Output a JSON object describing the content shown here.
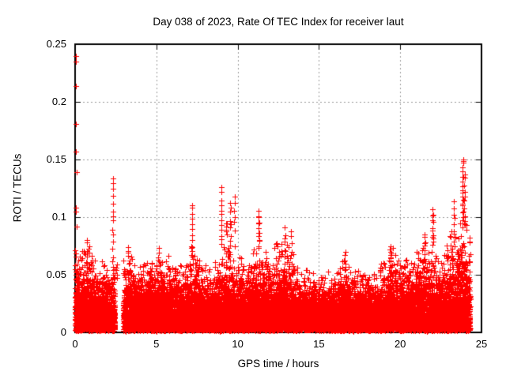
{
  "chart_data": {
    "type": "scatter",
    "title": "Day 038 of 2023, Rate Of TEC Index for receiver laut",
    "xlabel": "GPS time / hours",
    "ylabel": "ROTI / TECUs",
    "xlim": [
      0,
      25
    ],
    "ylim": [
      0,
      0.25
    ],
    "xtick_labels": [
      "0",
      "5",
      "10",
      "15",
      "20",
      "25"
    ],
    "ytick_labels": [
      "0",
      "0.05",
      "0.1",
      "0.15",
      "0.2",
      "0.25"
    ],
    "grid": "dashed",
    "grid_color": "#9a9a9a",
    "marker_shape": "plus",
    "marker_color": "#ff0000",
    "border_color": "#000000",
    "background_color": "#ffffff",
    "series_name": "ROTI",
    "sampling": {
      "start_hour": 0,
      "end_hour": 24.3,
      "gap_hours": [
        2.45,
        2.95
      ],
      "epoch_step_hours": 0.008333,
      "points_per_epoch": 6,
      "seed": 38
    },
    "envelope_hour_maxroti": [
      [
        0.0,
        0.078
      ],
      [
        0.2,
        0.062
      ],
      [
        0.4,
        0.068
      ],
      [
        0.7,
        0.08
      ],
      [
        1.0,
        0.072
      ],
      [
        1.3,
        0.065
      ],
      [
        1.6,
        0.062
      ],
      [
        1.9,
        0.056
      ],
      [
        2.2,
        0.062
      ],
      [
        2.45,
        0.055
      ],
      [
        2.95,
        0.058
      ],
      [
        3.3,
        0.072
      ],
      [
        3.6,
        0.062
      ],
      [
        4.0,
        0.056
      ],
      [
        4.4,
        0.065
      ],
      [
        4.8,
        0.07
      ],
      [
        5.2,
        0.078
      ],
      [
        5.6,
        0.07
      ],
      [
        6.0,
        0.06
      ],
      [
        6.4,
        0.058
      ],
      [
        6.8,
        0.062
      ],
      [
        7.2,
        0.072
      ],
      [
        7.6,
        0.066
      ],
      [
        8.0,
        0.056
      ],
      [
        8.4,
        0.058
      ],
      [
        8.8,
        0.066
      ],
      [
        9.2,
        0.07
      ],
      [
        9.6,
        0.076
      ],
      [
        10.0,
        0.068
      ],
      [
        10.4,
        0.06
      ],
      [
        10.8,
        0.066
      ],
      [
        11.2,
        0.075
      ],
      [
        11.6,
        0.068
      ],
      [
        12.0,
        0.062
      ],
      [
        12.4,
        0.078
      ],
      [
        12.8,
        0.072
      ],
      [
        13.2,
        0.076
      ],
      [
        13.6,
        0.06
      ],
      [
        14.0,
        0.056
      ],
      [
        14.5,
        0.05
      ],
      [
        15.0,
        0.048
      ],
      [
        15.5,
        0.052
      ],
      [
        16.0,
        0.05
      ],
      [
        16.5,
        0.06
      ],
      [
        17.0,
        0.052
      ],
      [
        17.5,
        0.05
      ],
      [
        18.0,
        0.052
      ],
      [
        18.5,
        0.05
      ],
      [
        19.0,
        0.06
      ],
      [
        19.4,
        0.072
      ],
      [
        19.8,
        0.062
      ],
      [
        20.2,
        0.06
      ],
      [
        20.6,
        0.066
      ],
      [
        21.0,
        0.07
      ],
      [
        21.4,
        0.078
      ],
      [
        21.8,
        0.072
      ],
      [
        22.2,
        0.064
      ],
      [
        22.6,
        0.07
      ],
      [
        23.0,
        0.08
      ],
      [
        23.4,
        0.09
      ],
      [
        23.8,
        0.096
      ],
      [
        24.1,
        0.09
      ],
      [
        24.3,
        0.08
      ]
    ],
    "spike_streaks_t_y0_y1_n": [
      [
        2.33,
        0.05,
        0.135,
        16
      ],
      [
        2.55,
        0.047,
        0.06,
        5
      ],
      [
        7.2,
        0.07,
        0.112,
        10
      ],
      [
        9.0,
        0.075,
        0.125,
        12
      ],
      [
        9.3,
        0.084,
        0.096,
        6
      ],
      [
        9.55,
        0.08,
        0.112,
        8
      ],
      [
        9.8,
        0.09,
        0.118,
        6
      ],
      [
        11.3,
        0.074,
        0.104,
        14
      ],
      [
        12.9,
        0.06,
        0.09,
        8
      ],
      [
        13.3,
        0.06,
        0.088,
        6
      ],
      [
        16.6,
        0.054,
        0.068,
        6
      ],
      [
        19.4,
        0.06,
        0.076,
        6
      ],
      [
        21.5,
        0.06,
        0.086,
        8
      ],
      [
        22.0,
        0.074,
        0.106,
        12
      ],
      [
        23.3,
        0.08,
        0.112,
        8
      ],
      [
        23.85,
        0.1,
        0.152,
        18
      ],
      [
        23.95,
        0.092,
        0.138,
        10
      ]
    ],
    "outliers_hour_roti": [
      [
        0.05,
        0.24
      ],
      [
        0.06,
        0.235
      ],
      [
        0.05,
        0.214
      ],
      [
        0.07,
        0.181
      ],
      [
        0.05,
        0.157
      ],
      [
        0.08,
        0.139
      ],
      [
        0.06,
        0.105
      ],
      [
        0.09,
        0.092
      ],
      [
        0.04,
        0.108
      ]
    ]
  }
}
